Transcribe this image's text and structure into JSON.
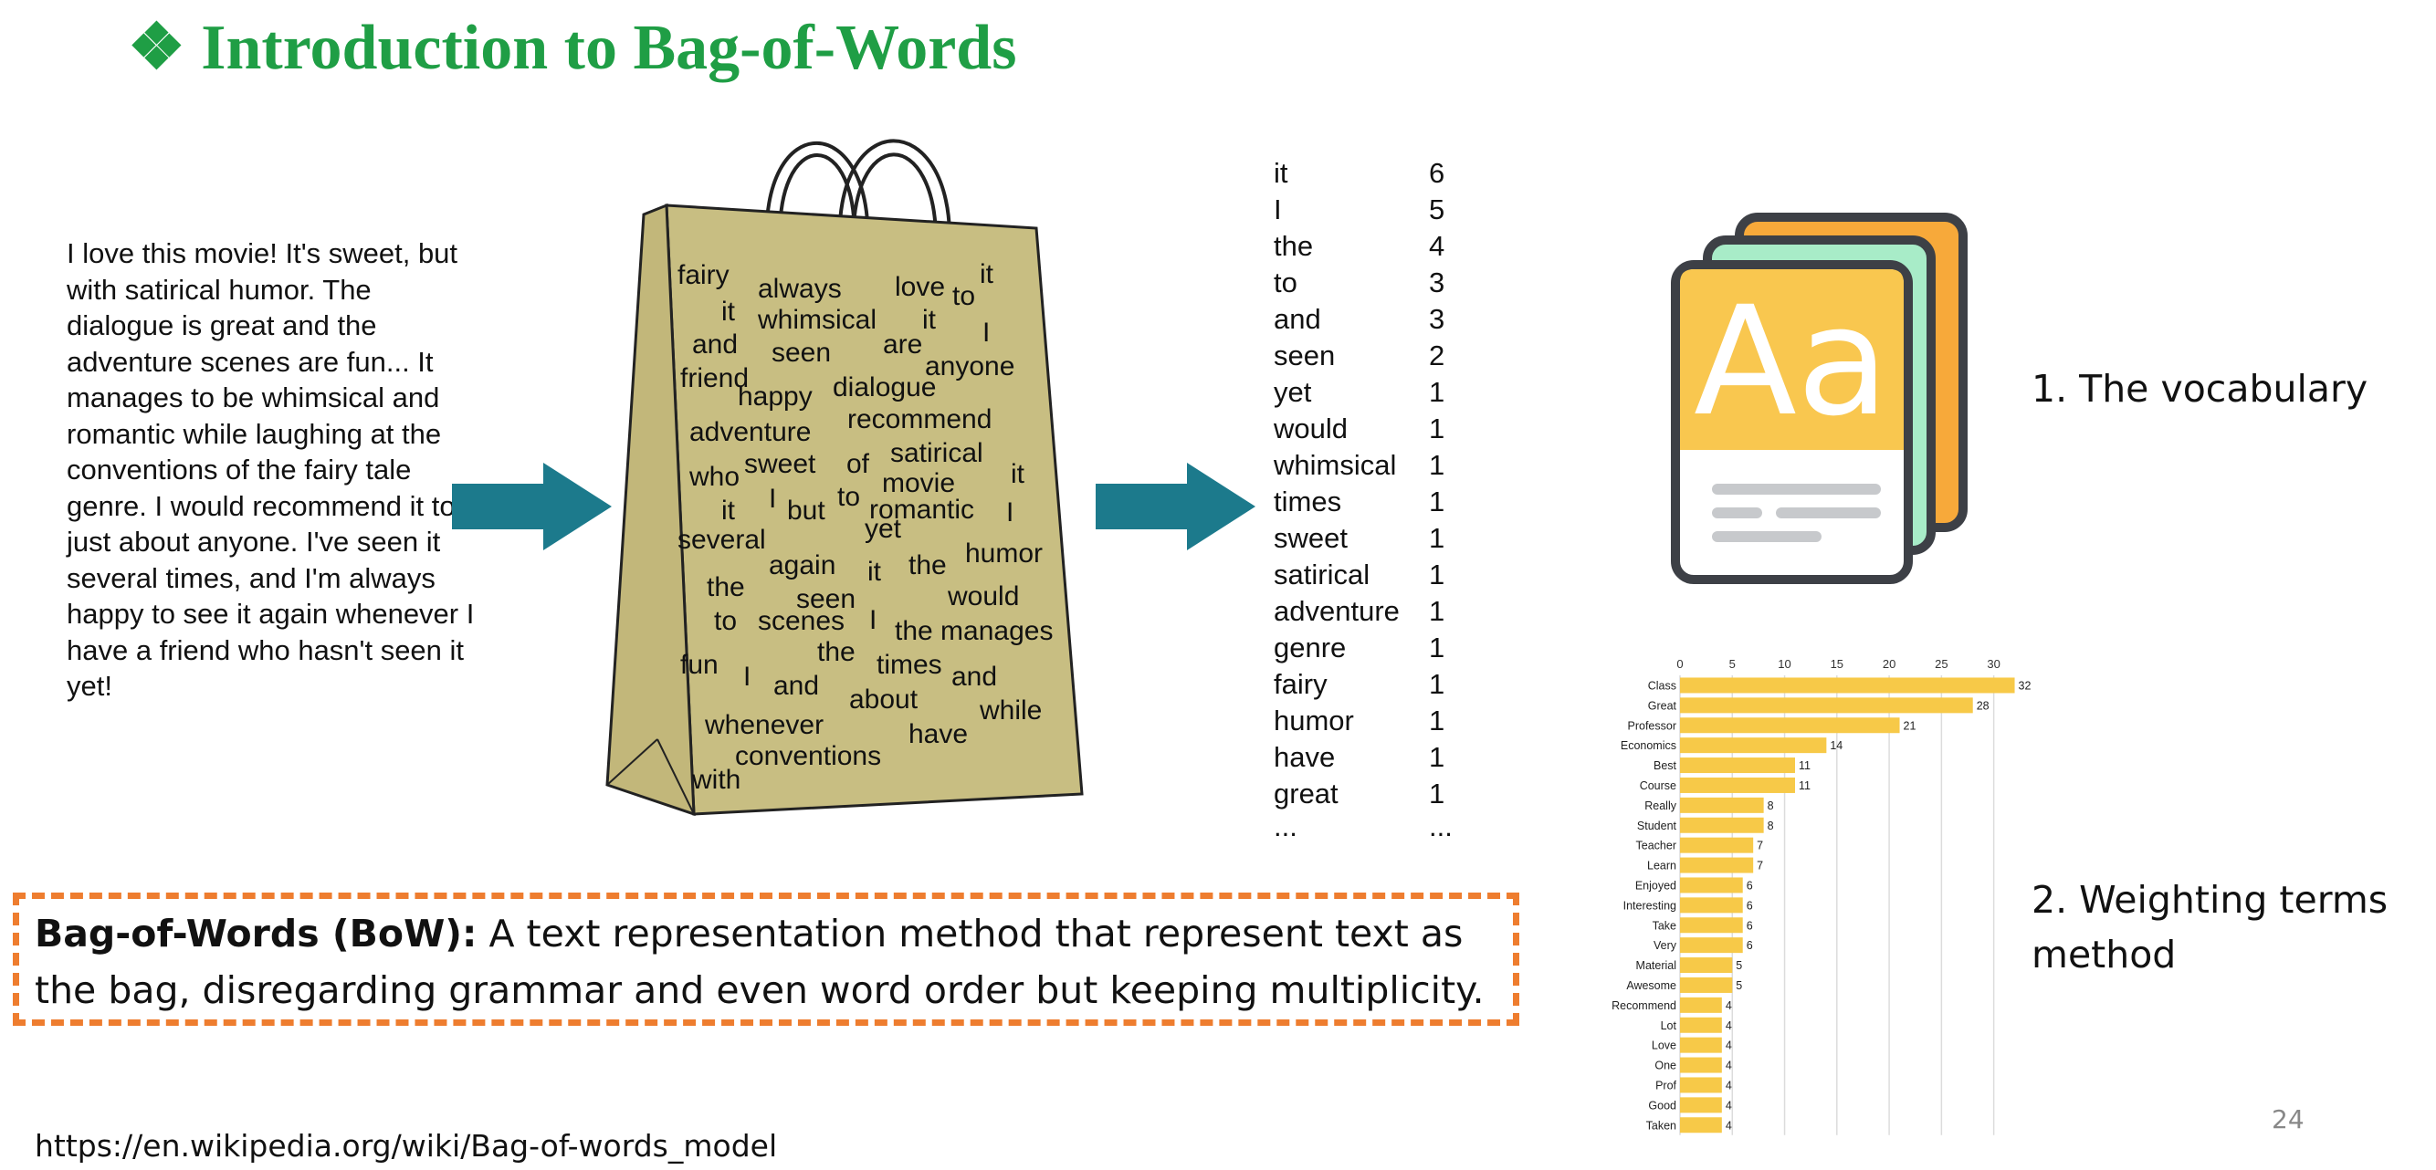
{
  "title": "❖ Introduction to Bag-of-Words",
  "review_text": "I love this movie! It's sweet, but with satirical humor. The dialogue is great and the adventure scenes are fun... It manages to be whimsical and romantic while laughing at the conventions of the fairy tale genre. I would recommend it to just about anyone. I've seen it several times, and I'm always happy to see it again whenever I have a friend who hasn't seen it yet!",
  "bag_words": [
    "fairy",
    "always",
    "love",
    "to",
    "it",
    "it",
    "whimsical",
    "it",
    "I",
    "and",
    "seen",
    "are",
    "friend",
    "anyone",
    "happy",
    "dialogue",
    "adventure",
    "recommend",
    "satirical",
    "who",
    "sweet",
    "of",
    "it",
    "movie",
    "it",
    "I",
    "but",
    "to",
    "romantic",
    "I",
    "several",
    "yet",
    "humor",
    "again",
    "it",
    "the",
    "the",
    "seen",
    "would",
    "to",
    "scenes",
    "I",
    "the manages",
    "the",
    "fun",
    "I",
    "and",
    "times",
    "and",
    "about",
    "while",
    "whenever",
    "have",
    "conventions",
    "with"
  ],
  "word_freq": [
    {
      "word": "it",
      "count": "6"
    },
    {
      "word": "I",
      "count": "5"
    },
    {
      "word": "the",
      "count": "4"
    },
    {
      "word": "to",
      "count": "3"
    },
    {
      "word": "and",
      "count": "3"
    },
    {
      "word": "seen",
      "count": "2"
    },
    {
      "word": "yet",
      "count": "1"
    },
    {
      "word": "would",
      "count": "1"
    },
    {
      "word": "whimsical",
      "count": "1"
    },
    {
      "word": "times",
      "count": "1"
    },
    {
      "word": "sweet",
      "count": "1"
    },
    {
      "word": "satirical",
      "count": "1"
    },
    {
      "word": "adventure",
      "count": "1"
    },
    {
      "word": "genre",
      "count": "1"
    },
    {
      "word": "fairy",
      "count": "1"
    },
    {
      "word": "humor",
      "count": "1"
    },
    {
      "word": "have",
      "count": "1"
    },
    {
      "word": "great",
      "count": "1"
    },
    {
      "word": "...",
      "count": "..."
    }
  ],
  "vocab_icon_text": "Aa",
  "vocab_label": "1. The vocabulary",
  "weighting_label_line1": "2. Weighting terms",
  "weighting_label_line2": "method",
  "definition_term": "Bag-of-Words (BoW):",
  "definition_line1": " A text representation method that represent text as",
  "definition_line2": "the bag, disregarding grammar and even word order but keeping multiplicity.",
  "url": "https://en.wikipedia.org/wiki/Bag-of-words_model",
  "page_number": "24",
  "colors": {
    "title": "#1f9e45",
    "arrow": "#1c7a8c",
    "bag": "#c8be82",
    "bar": "#f7c948",
    "dash": "#ee7d2f",
    "icon_orange": "#f7a93a",
    "icon_mint": "#a8ecc8",
    "icon_yellow": "#f9c74f",
    "icon_dark": "#3d4046"
  },
  "chart_data": {
    "type": "bar",
    "orientation": "horizontal",
    "categories": [
      "Class",
      "Great",
      "Professor",
      "Economics",
      "Best",
      "Course",
      "Really",
      "Student",
      "Teacher",
      "Learn",
      "Enjoyed",
      "Interesting",
      "Take",
      "Very",
      "Material",
      "Awesome",
      "Recommend",
      "Lot",
      "Love",
      "One",
      "Prof",
      "Good",
      "Taken"
    ],
    "values": [
      32,
      28,
      21,
      14,
      11,
      11,
      8,
      8,
      7,
      7,
      6,
      6,
      6,
      6,
      5,
      5,
      4,
      4,
      4,
      4,
      4,
      4,
      4
    ],
    "xticks": [
      "0",
      "5",
      "10",
      "15",
      "20",
      "25",
      "30"
    ],
    "xlim": [
      0,
      33
    ],
    "grid": true,
    "color": "#f7c948"
  }
}
